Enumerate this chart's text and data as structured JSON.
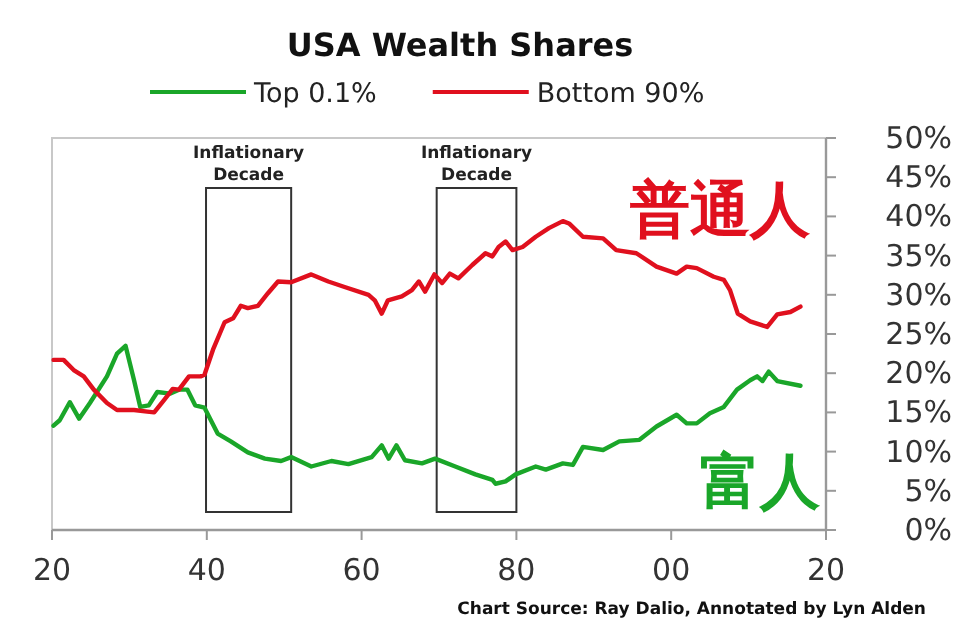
{
  "chart_data": {
    "type": "line",
    "title": "USA Wealth Shares",
    "legend": "top",
    "grid": false,
    "xlim": [
      1920,
      2020
    ],
    "xticks": [
      {
        "value": 1920,
        "label": "20"
      },
      {
        "value": 1940,
        "label": "40"
      },
      {
        "value": 1960,
        "label": "60"
      },
      {
        "value": 1980,
        "label": "80"
      },
      {
        "value": 2000,
        "label": "00"
      },
      {
        "value": 2020,
        "label": "20"
      }
    ],
    "ylim": [
      0,
      50
    ],
    "yticks": [
      {
        "value": 0,
        "label": "0%"
      },
      {
        "value": 5,
        "label": "5%"
      },
      {
        "value": 10,
        "label": "10%"
      },
      {
        "value": 15,
        "label": "15%"
      },
      {
        "value": 20,
        "label": "20%"
      },
      {
        "value": 25,
        "label": "25%"
      },
      {
        "value": 30,
        "label": "30%"
      },
      {
        "value": 35,
        "label": "35%"
      },
      {
        "value": 40,
        "label": "40%"
      },
      {
        "value": 45,
        "label": "45%"
      },
      {
        "value": 50,
        "label": "50%"
      }
    ],
    "series": [
      {
        "name": "Top 0.1%",
        "color": "#1aa629",
        "x": [
          1920.2,
          1921,
          1922.3,
          1923.5,
          1924.9,
          1927.1,
          1928.4,
          1929.5,
          1930.6,
          1931.4,
          1932.5,
          1933.6,
          1935.3,
          1936.4,
          1937.5,
          1938.5,
          1939.7,
          1941.4,
          1943.1,
          1945.3,
          1947.5,
          1949.6,
          1950.9,
          1953.5,
          1956.1,
          1958.3,
          1961.3,
          1962.6,
          1963.5,
          1964.5,
          1965.6,
          1967.8,
          1969.5,
          1972.1,
          1974.7,
          1976.9,
          1977.3,
          1978.6,
          1979.9,
          1982.5,
          1983.8,
          1986,
          1987.3,
          1988.6,
          1991.2,
          1993.3,
          1995.9,
          1998.1,
          2000.7,
          2002,
          2003.3,
          2005,
          2006.8,
          2008.5,
          2010.2,
          2011.1,
          2011.8,
          2012.6,
          2013.7,
          2016.7
        ],
        "values": [
          13.3,
          14.0,
          16.3,
          14.2,
          16.2,
          19.6,
          22.5,
          23.5,
          19.1,
          15.7,
          15.9,
          17.6,
          17.4,
          17.9,
          17.9,
          15.9,
          15.6,
          12.3,
          11.3,
          9.9,
          9.1,
          8.8,
          9.3,
          8.1,
          8.8,
          8.4,
          9.3,
          10.8,
          9.1,
          10.8,
          8.9,
          8.5,
          9.1,
          8.1,
          7.1,
          6.4,
          5.9,
          6.2,
          7.1,
          8.1,
          7.7,
          8.5,
          8.3,
          10.6,
          10.2,
          11.3,
          11.5,
          13.2,
          14.7,
          13.6,
          13.6,
          14.9,
          15.7,
          17.9,
          19.1,
          19.6,
          19.0,
          20.2,
          19.0,
          18.4
        ]
      },
      {
        "name": "Bottom 90%",
        "color": "#e0101e",
        "x": [
          1920.2,
          1921.5,
          1922.8,
          1924.1,
          1925.4,
          1927.1,
          1928.4,
          1930.6,
          1932.3,
          1933.2,
          1934.5,
          1935.6,
          1936.4,
          1937.7,
          1939.2,
          1939.7,
          1940.8,
          1942.3,
          1943.4,
          1944.4,
          1945.3,
          1946.6,
          1947.9,
          1949.2,
          1950.9,
          1953.5,
          1955.7,
          1957.8,
          1960.9,
          1961.7,
          1962.6,
          1963.4,
          1965.2,
          1966.5,
          1967.4,
          1968.2,
          1969.4,
          1970.4,
          1971.4,
          1972.5,
          1974.3,
          1976,
          1976.9,
          1977.7,
          1978.6,
          1979.5,
          1980.8,
          1982.5,
          1984.2,
          1986,
          1986.8,
          1988.6,
          1991.2,
          1992.9,
          1995.5,
          1998.1,
          2000.7,
          2002,
          2003.3,
          2005.5,
          2006.8,
          2007.6,
          2008.6,
          2010.2,
          2012.4,
          2013.7,
          2015.4,
          2016.7
        ],
        "values": [
          21.7,
          21.7,
          20.4,
          19.6,
          17.9,
          16.2,
          15.3,
          15.3,
          15.1,
          15.0,
          16.6,
          18.0,
          17.9,
          19.6,
          19.6,
          19.8,
          23.0,
          26.5,
          27.0,
          28.6,
          28.3,
          28.6,
          30.2,
          31.7,
          31.6,
          32.6,
          31.7,
          31.0,
          30.0,
          29.3,
          27.6,
          29.3,
          29.8,
          30.6,
          31.7,
          30.4,
          32.6,
          31.5,
          32.7,
          32.1,
          33.8,
          35.3,
          34.9,
          36.1,
          36.8,
          35.7,
          36.1,
          37.4,
          38.5,
          39.4,
          39.1,
          37.4,
          37.2,
          35.7,
          35.3,
          33.6,
          32.7,
          33.6,
          33.4,
          32.3,
          31.9,
          30.6,
          27.6,
          26.6,
          25.9,
          27.5,
          27.8,
          28.5
        ]
      }
    ],
    "bands": [
      {
        "axis": "x",
        "from": 1939.9,
        "to": 1950.9,
        "label": "Inflationary Decade"
      },
      {
        "axis": "x",
        "from": 1969.7,
        "to": 1980.0,
        "label": "Inflationary Decade"
      }
    ],
    "annotations": [
      "普通人",
      "富人",
      "Chart Source: Ray Dalio, Annotated by Lyn Alden"
    ]
  }
}
